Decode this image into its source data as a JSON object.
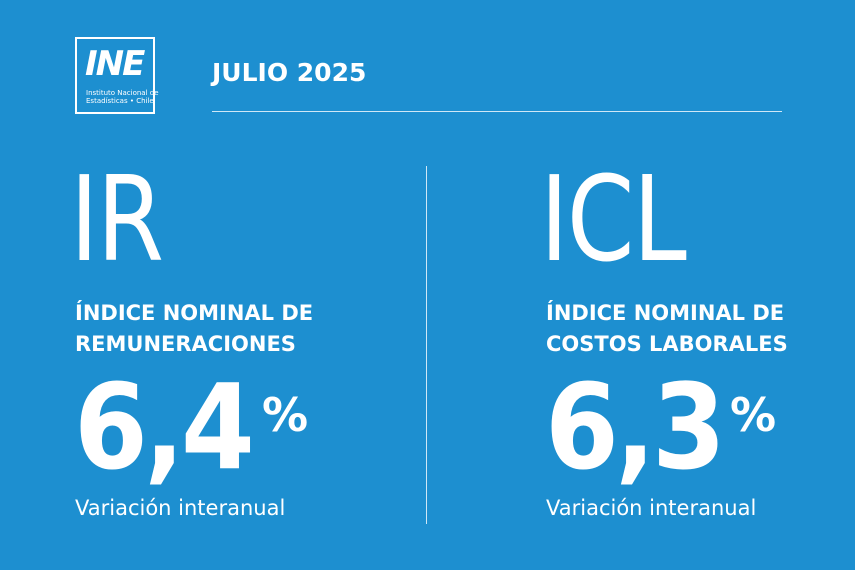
{
  "header": {
    "logo": "INE",
    "logo_caption": [
      "Instituto Nacional de",
      "Estadísticas • Chile"
    ],
    "period": "JULIO 2025"
  },
  "panels": [
    {
      "abbr": "IR",
      "title": [
        "ÍNDICE NOMINAL DE",
        "REMUNERACIONES"
      ],
      "value": "6,4",
      "unit": "%",
      "note": "Variación interanual"
    },
    {
      "abbr": "ICL",
      "title": [
        "ÍNDICE NOMINAL DE",
        "COSTOS LABORALES"
      ],
      "value": "6,3",
      "unit": "%",
      "note": "Variación interanual"
    }
  ]
}
